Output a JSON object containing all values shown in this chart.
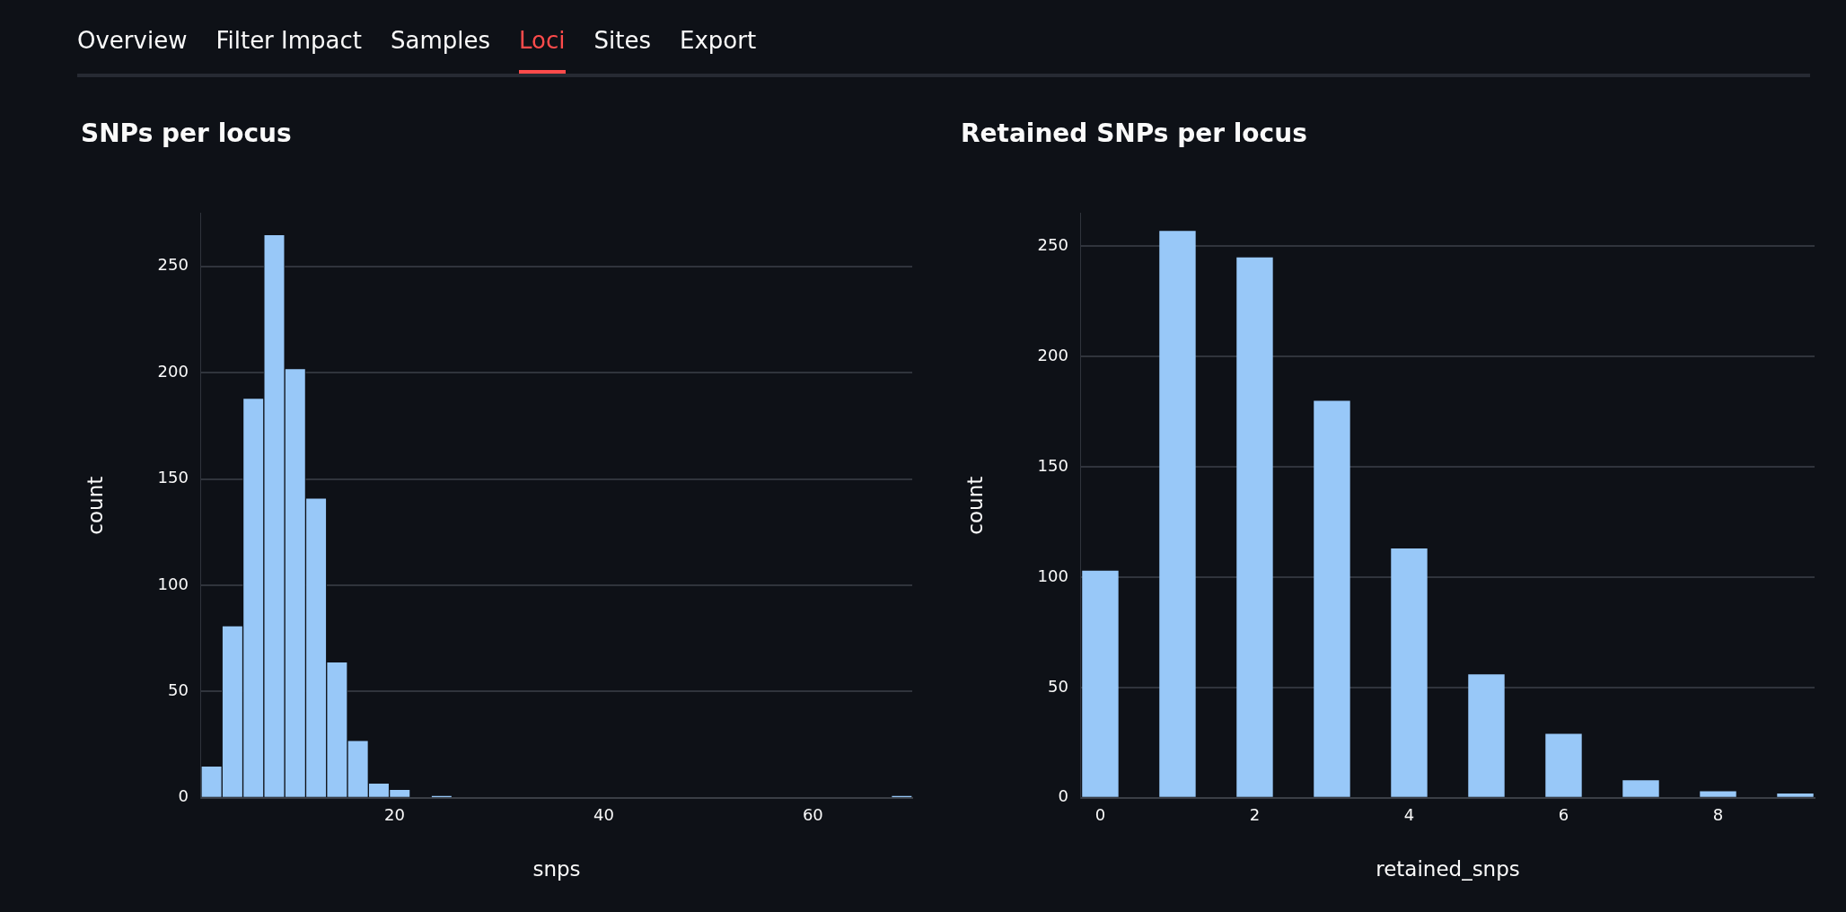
{
  "chart_data": [
    {
      "type": "other",
      "annotations": [
        "Overview",
        "Filter Impact",
        "Samples",
        "Loci",
        "Sites",
        "Export"
      ]
    },
    {
      "type": "histogram",
      "title": "SNPs per locus",
      "xlabel": "snps",
      "ylabel": "count",
      "color": "#98c8f8",
      "bins": [
        1.5,
        3.5,
        5.5,
        7.5,
        9.5,
        11.5,
        13.5,
        15.5,
        17.5,
        19.5,
        21.5,
        23.5,
        25.5,
        27.5,
        29.5,
        31.5,
        33.5,
        35.5,
        37.5,
        39.5,
        41.5,
        43.5,
        45.5,
        47.5,
        49.5,
        51.5,
        53.5,
        55.5,
        57.5,
        59.5,
        61.5,
        63.5,
        65.5,
        67.5,
        69.5
      ],
      "values": [
        15,
        81,
        188,
        265,
        202,
        141,
        64,
        27,
        7,
        4,
        0,
        1,
        0,
        0,
        0,
        0,
        0,
        0,
        0,
        0,
        0,
        0,
        0,
        0,
        0,
        0,
        0,
        0,
        0,
        0,
        0,
        0,
        0,
        1
      ],
      "xlim": [
        1.5,
        69.5
      ],
      "xticks": [
        20,
        40,
        60
      ],
      "ylim": [
        0,
        275
      ],
      "yticks": [
        0,
        50,
        100,
        150,
        200,
        250
      ],
      "grid": "y"
    },
    {
      "type": "bar",
      "title": "Retained SNPs per locus",
      "xlabel": "retained_snps",
      "ylabel": "count",
      "color": "#98c8f8",
      "x": [
        0,
        1,
        2,
        3,
        4,
        5,
        6,
        7,
        8,
        9
      ],
      "values": [
        103,
        257,
        245,
        180,
        113,
        56,
        29,
        8,
        3,
        2
      ],
      "xlim": [
        -0.25,
        9.25
      ],
      "xticks": [
        0,
        2,
        4,
        6,
        8
      ],
      "ylim": [
        0,
        265
      ],
      "yticks": [
        0,
        50,
        100,
        150,
        200,
        250
      ],
      "grid": "y"
    }
  ]
}
